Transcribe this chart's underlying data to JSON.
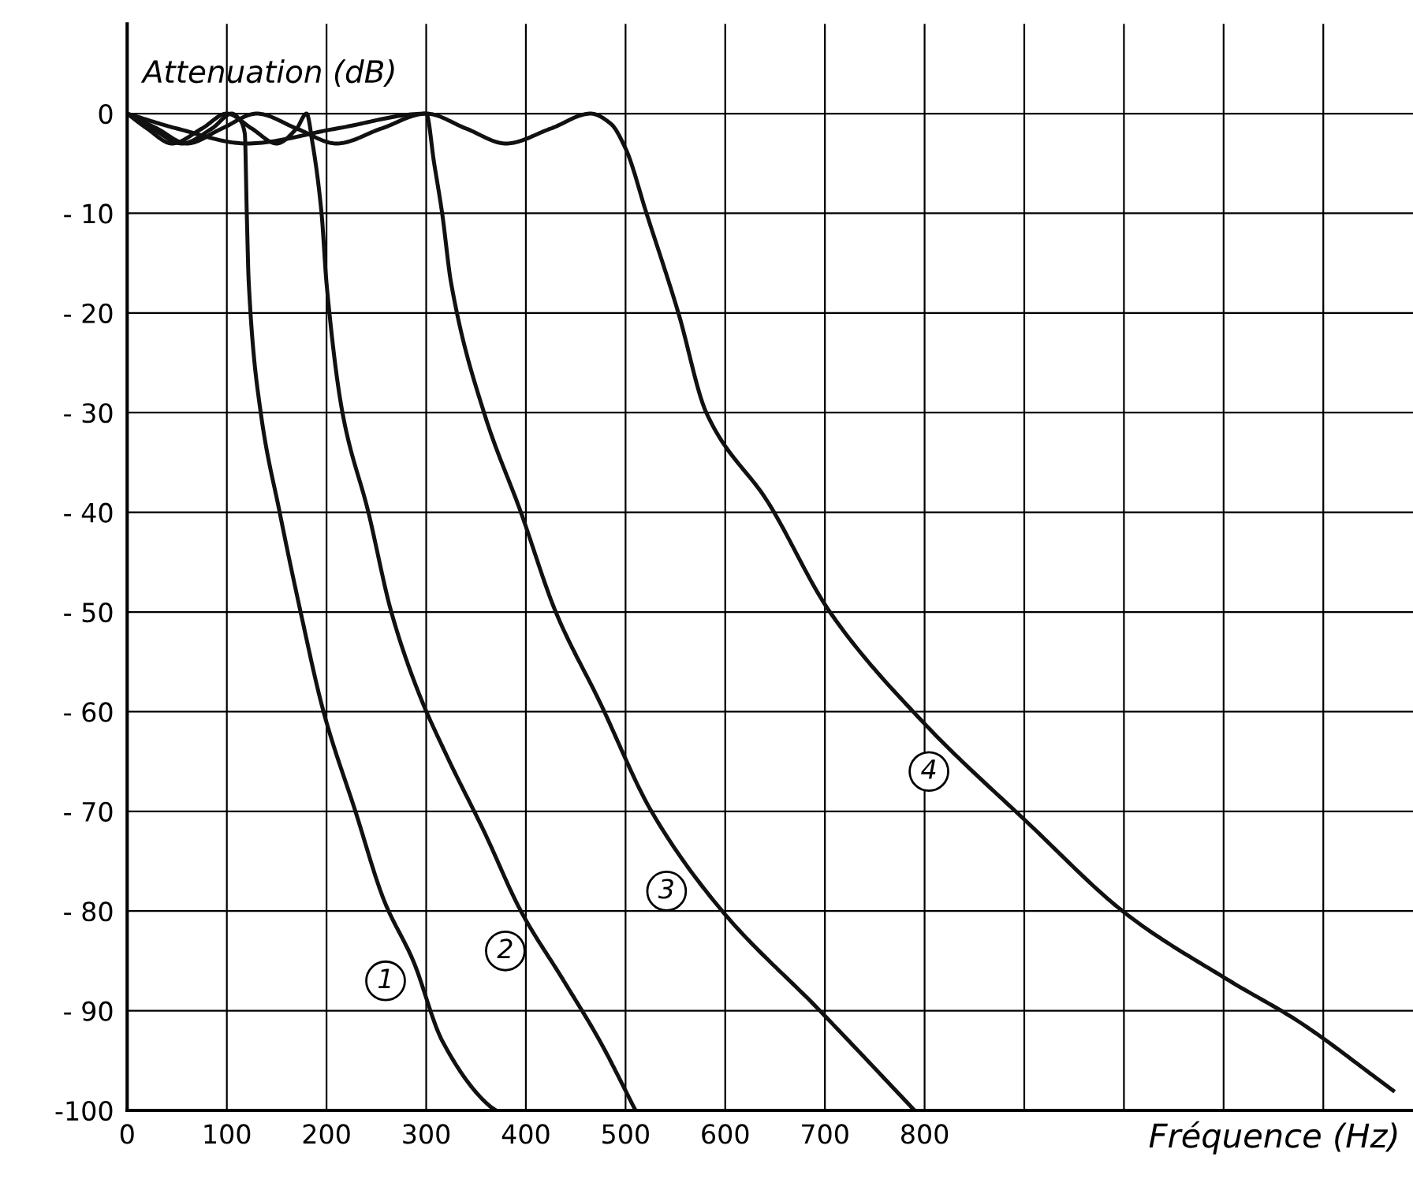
{
  "chart_data": {
    "type": "line",
    "ylabel": "Attenuation (dB)",
    "xlabel": "Fréquence (Hz)",
    "xlim": [
      0,
      1290
    ],
    "ylim": [
      -100,
      9
    ],
    "xticks": [
      0,
      100,
      200,
      300,
      400,
      500,
      600,
      700,
      800,
      {
        "value": 900,
        "label": null
      },
      {
        "value": 1000,
        "label": null
      },
      {
        "value": 1100,
        "label": null
      },
      {
        "value": 1200,
        "label": null
      }
    ],
    "yticks": [
      {
        "value": -100,
        "label": "-100"
      },
      {
        "value": -90,
        "label": "- 90"
      },
      {
        "value": -80,
        "label": "- 80"
      },
      {
        "value": -70,
        "label": "- 70"
      },
      {
        "value": -60,
        "label": "- 60"
      },
      {
        "value": -50,
        "label": "- 50"
      },
      {
        "value": -40,
        "label": "- 40"
      },
      {
        "value": -30,
        "label": "- 30"
      },
      {
        "value": -20,
        "label": "- 20"
      },
      {
        "value": -10,
        "label": "- 10"
      },
      0
    ],
    "grid": true,
    "marker": "none",
    "line_style": "solid",
    "series": [
      {
        "name": "1",
        "color": "#111111",
        "x": [
          0,
          25,
          55,
          85,
          105,
          112,
          118,
          120,
          122,
          134,
          153,
          174,
          197,
          229,
          258,
          287,
          316,
          363,
          370
        ],
        "values": [
          0,
          -1.5,
          -3,
          -1.5,
          0,
          -0.5,
          -2,
          -10,
          -17,
          -30,
          -40,
          -50,
          -60,
          -70,
          -79,
          -85,
          -93,
          -99.5,
          -100
        ]
      },
      {
        "name": "2",
        "color": "#111111",
        "x": [
          0,
          20,
          45,
          75,
          100,
          125,
          150,
          170,
          180,
          186,
          195,
          200,
          216,
          242,
          265,
          292,
          321,
          358,
          395,
          438,
          474,
          510
        ],
        "values": [
          0,
          -1.5,
          -3,
          -1.5,
          0,
          -1.5,
          -3,
          -1.5,
          0,
          -3,
          -10,
          -17,
          -30,
          -40,
          -50,
          -58,
          -64.5,
          -72,
          -80,
          -87,
          -93,
          -100
        ]
      },
      {
        "name": "3",
        "color": "#111111",
        "x": [
          0,
          30,
          60,
          95,
          130,
          170,
          210,
          255,
          300,
          308,
          316,
          325,
          358,
          395,
          430,
          474,
          526,
          597,
          695,
          790
        ],
        "values": [
          0,
          -1.5,
          -3,
          -1.5,
          0,
          -1.5,
          -3,
          -1.5,
          0,
          -5,
          -10,
          -17,
          -30,
          -40,
          -50,
          -59,
          -70,
          -80,
          -90,
          -100
        ]
      },
      {
        "name": "4",
        "color": "#111111",
        "x": [
          0,
          50,
          120,
          210,
          300,
          340,
          380,
          425,
          465,
          485,
          500,
          521,
          553,
          581,
          643,
          705,
          798,
          902,
          1005,
          1106,
          1174,
          1270
        ],
        "values": [
          0,
          -1.5,
          -3,
          -1.5,
          0,
          -1.5,
          -3,
          -1.5,
          0,
          -1,
          -3.5,
          -10,
          -20,
          -30,
          -39,
          -50,
          -61,
          -71,
          -80.5,
          -87,
          -91,
          -98
        ]
      }
    ]
  }
}
